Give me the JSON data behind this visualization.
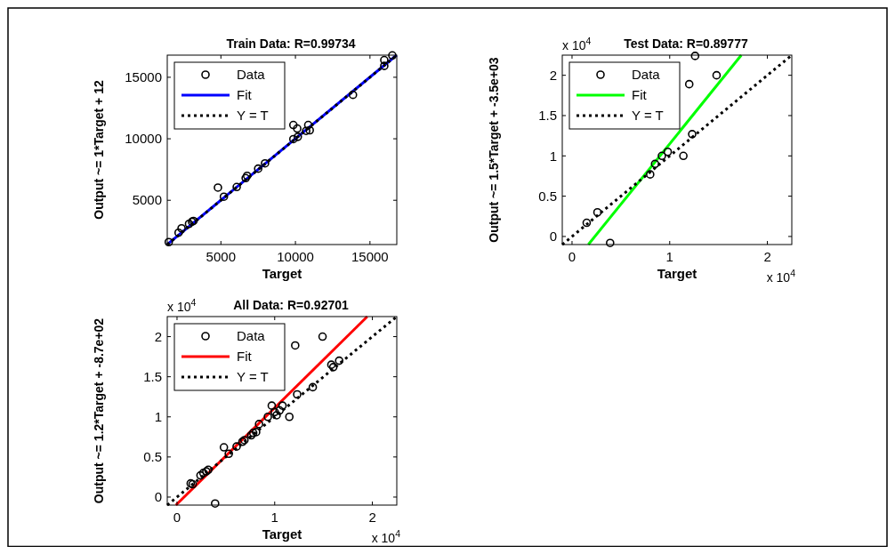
{
  "chart_data": [
    {
      "type": "scatter",
      "title": "Train Data: R=0.99734",
      "xlabel": "Target",
      "ylabel": "Output ~= 1*Target + 12",
      "xlim": [
        1400,
        16800
      ],
      "ylim": [
        1400,
        16800
      ],
      "xticks": [
        5000,
        10000,
        15000
      ],
      "yticks": [
        5000,
        10000,
        15000
      ],
      "grid": false,
      "legend": "top left",
      "series": [
        {
          "name": "Data",
          "marker": "circle",
          "color": "#000000",
          "x": [
            1500,
            2160,
            2360,
            2860,
            3060,
            3160,
            4800,
            5200,
            6060,
            6660,
            6760,
            7500,
            7960,
            9860,
            10160,
            9860,
            10120,
            10720,
            10860,
            10960,
            13860,
            15960,
            15960,
            16500
          ],
          "values": [
            1600,
            2360,
            2720,
            3080,
            3250,
            3320,
            6030,
            5290,
            6080,
            6800,
            6990,
            7570,
            8000,
            9970,
            10160,
            11120,
            10830,
            10640,
            11120,
            10690,
            13570,
            15920,
            16400,
            16780
          ]
        },
        {
          "name": "Fit",
          "type": "line",
          "line_style": "solid",
          "color": "#0000ff",
          "x": [
            1400,
            16788
          ],
          "values": [
            1410,
            16800
          ]
        },
        {
          "name": "Y = T",
          "type": "line",
          "line_style": "dotted",
          "color": "#000000",
          "x": [
            1400,
            16800
          ],
          "values": [
            1400,
            16800
          ]
        }
      ]
    },
    {
      "type": "scatter",
      "title": "Test Data: R=0.89777",
      "xlabel": "Target",
      "ylabel": "Output ~= 1.5*Target + -3.5e+03",
      "annotations": [
        "x 10$^{4}$",
        "x 10$^{4}$"
      ],
      "xlim": [
        -0.1,
        2.25
      ],
      "ylim": [
        -0.1,
        2.25
      ],
      "xticks": [
        0,
        1,
        2
      ],
      "yticks": [
        0,
        0.5,
        1,
        1.5,
        2
      ],
      "grid": false,
      "legend": "top left",
      "series": [
        {
          "name": "Data",
          "marker": "circle",
          "color": "#000000",
          "x": [
            0.15,
            0.26,
            0.39,
            0.8,
            0.85,
            0.92,
            0.98,
            1.14,
            1.2,
            1.23,
            1.26,
            1.48
          ],
          "values": [
            0.17,
            0.3,
            -0.08,
            0.77,
            0.9,
            1.0,
            1.05,
            1.0,
            1.89,
            1.27,
            2.24,
            2.0
          ]
        },
        {
          "name": "Fit",
          "type": "line",
          "line_style": "solid",
          "color": "#00ff00",
          "x": [
            0.167,
            1.733
          ],
          "values": [
            -0.1,
            2.25
          ]
        },
        {
          "name": "Y = T",
          "type": "line",
          "line_style": "dotted",
          "color": "#000000",
          "x": [
            -0.1,
            2.25
          ],
          "values": [
            -0.1,
            2.25
          ]
        }
      ]
    },
    {
      "type": "scatter",
      "title": "All Data: R=0.92701",
      "xlabel": "Target",
      "ylabel": "Output ~= 1.2*Target + -8.7e+02",
      "annotations": [
        "x 10$^{4}$",
        "x 10$^{4}$"
      ],
      "xlim": [
        -0.1,
        2.25
      ],
      "ylim": [
        -0.1,
        2.25
      ],
      "xticks": [
        0,
        1,
        2
      ],
      "yticks": [
        0,
        0.5,
        1,
        1.5,
        2
      ],
      "grid": false,
      "legend": "top left",
      "series": [
        {
          "name": "Data",
          "marker": "circle",
          "color": "#000000",
          "x": [
            0.14,
            0.16,
            0.24,
            0.27,
            0.3,
            0.32,
            0.39,
            0.48,
            0.53,
            0.61,
            0.67,
            0.69,
            0.76,
            0.78,
            0.81,
            0.84,
            0.93,
            0.97,
            1.0,
            1.02,
            1.05,
            1.08,
            1.15,
            1.21,
            1.23,
            1.39,
            1.49,
            1.58,
            1.6,
            1.66
          ],
          "values": [
            0.17,
            0.16,
            0.27,
            0.3,
            0.32,
            0.34,
            -0.08,
            0.62,
            0.54,
            0.63,
            0.69,
            0.71,
            0.77,
            0.8,
            0.81,
            0.91,
            1.0,
            1.14,
            1.06,
            1.02,
            1.08,
            1.14,
            1.0,
            1.89,
            1.28,
            1.37,
            2.0,
            1.65,
            1.62,
            1.7
          ]
        },
        {
          "name": "Fit",
          "type": "line",
          "line_style": "solid",
          "color": "#ff0000",
          "x": [
            -0.011,
            1.948
          ],
          "values": [
            -0.1,
            2.25
          ]
        },
        {
          "name": "Y = T",
          "type": "line",
          "line_style": "dotted",
          "color": "#000000",
          "x": [
            -0.1,
            2.25
          ],
          "values": [
            -0.1,
            2.25
          ]
        }
      ]
    }
  ]
}
